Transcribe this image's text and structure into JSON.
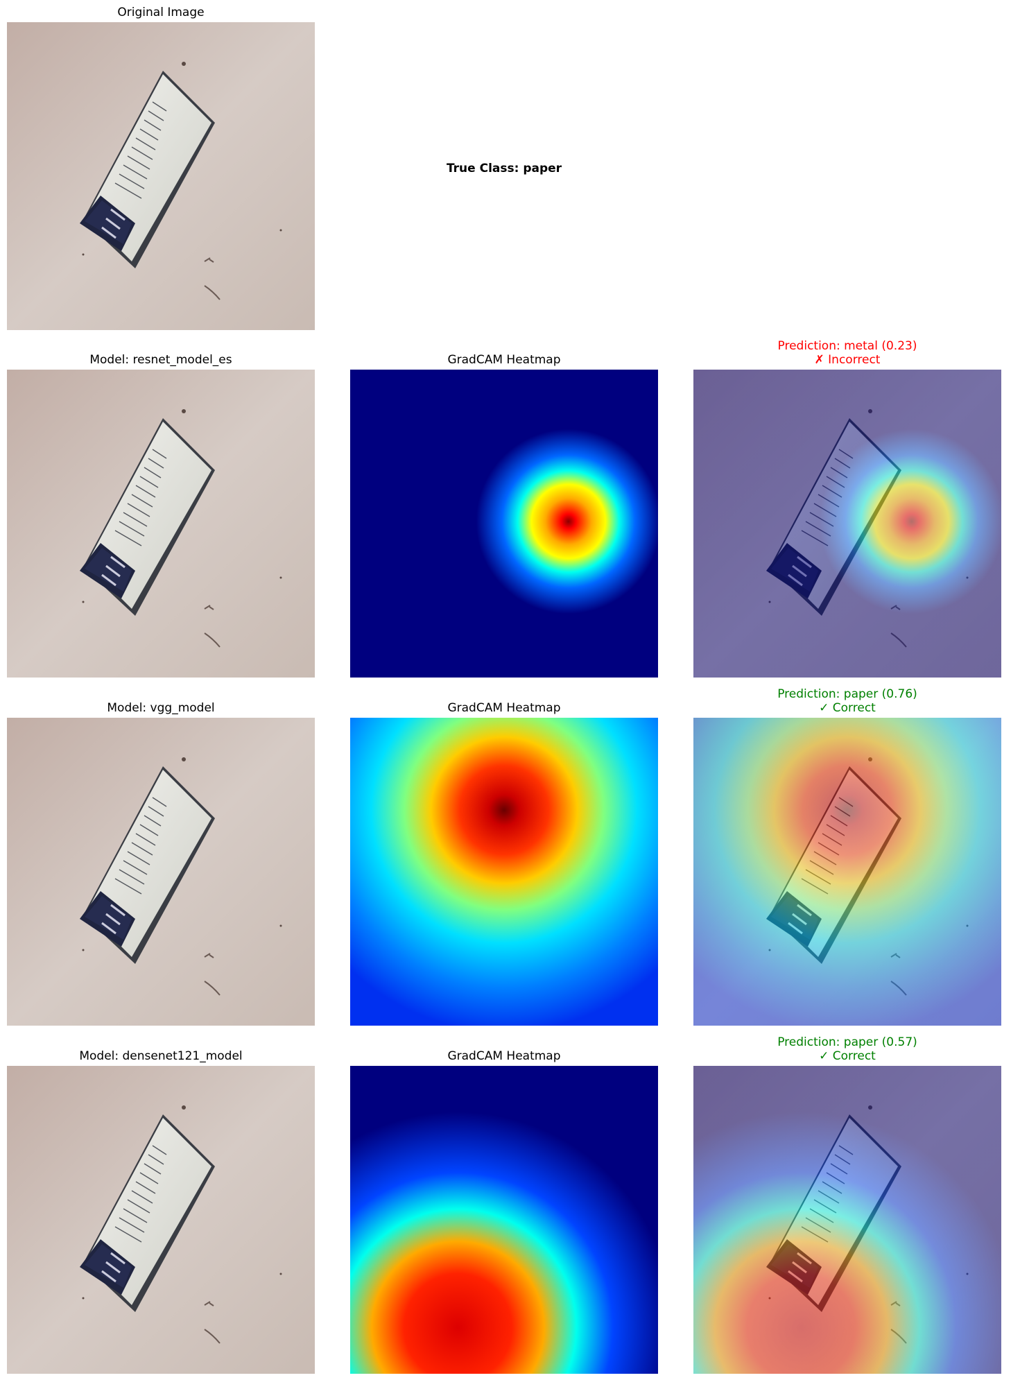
{
  "figure": {
    "original_title": "Original Image",
    "true_class": "True Class: paper",
    "rows": [
      {
        "model_title": "Model: resnet_model_es",
        "heatmap_title": "GradCAM Heatmap",
        "prediction": "Prediction: metal (0.23)",
        "verdict": "✗ Incorrect",
        "status_color": "#ff0000"
      },
      {
        "model_title": "Model: vgg_model",
        "heatmap_title": "GradCAM Heatmap",
        "prediction": "Prediction: paper (0.76)",
        "verdict": "✓ Correct",
        "status_color": "#008000"
      },
      {
        "model_title": "Model: densenet121_model",
        "heatmap_title": "GradCAM Heatmap",
        "prediction": "Prediction: paper (0.57)",
        "verdict": "✓ Correct",
        "status_color": "#008000"
      }
    ]
  },
  "colors": {
    "background": "#ffffff",
    "jet_low": "#00007f",
    "jet_high": "#ff0000",
    "incorrect": "#ff0000",
    "correct": "#008000"
  }
}
